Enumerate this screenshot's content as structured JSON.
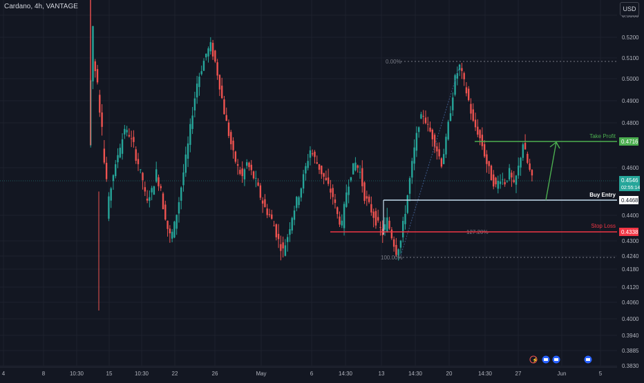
{
  "header": {
    "title": "Cardano, 4h, VANTAGE",
    "currency": "USD"
  },
  "colors": {
    "background": "#131722",
    "grid": "#1e222d",
    "up": "#26a69a",
    "down": "#ef5350",
    "take_profit": "#4caf50",
    "buy_entry": "#c8e0f2",
    "stop_loss": "#f23645",
    "fib": "#787b86"
  },
  "chart_data": {
    "type": "candlestick",
    "title": "Cardano, 4h, VANTAGE",
    "y_unit": "USD",
    "y_range": [
      0.38,
      0.536
    ],
    "y_ticks": [
      "0.5360",
      "0.5200",
      "0.5100",
      "0.5000",
      "0.4900",
      "0.4800",
      "0.4600",
      "0.4400",
      "0.4300",
      "0.4240",
      "0.4180",
      "0.4120",
      "0.4060",
      "0.4000",
      "0.3940",
      "0.3885",
      "0.3830"
    ],
    "x_ticks": [
      "4",
      "8",
      "10:30",
      "15",
      "10:30",
      "22",
      "26",
      "May",
      "6",
      "14:30",
      "13",
      "14:30",
      "20",
      "14:30",
      "27",
      "Jun",
      "5"
    ],
    "annotations": {
      "take_profit": {
        "label": "Take Profit",
        "price": "0.4716"
      },
      "buy_entry": {
        "label": "Buy Entry",
        "price": "0.4468"
      },
      "stop_loss": {
        "label": "Stop Loss",
        "price": "0.4338"
      },
      "current_price": {
        "price": "0.4546",
        "countdown": "02:55:14"
      },
      "fib_levels": [
        "0.00%",
        "127.20%",
        "100.00%"
      ]
    },
    "series_shape": [
      [
        0.47,
        0.528
      ],
      [
        0.508,
        0.5
      ],
      [
        0.492,
        0.48
      ],
      [
        0.47,
        0.455
      ],
      [
        0.44,
        0.452
      ],
      [
        0.455,
        0.46
      ],
      [
        0.462,
        0.47
      ],
      [
        0.468,
        0.478
      ],
      [
        0.476,
        0.475
      ],
      [
        0.474,
        0.47
      ],
      [
        0.468,
        0.462
      ],
      [
        0.46,
        0.455
      ],
      [
        0.452,
        0.445
      ],
      [
        0.448,
        0.45
      ],
      [
        0.45,
        0.458
      ],
      [
        0.456,
        0.452
      ],
      [
        0.448,
        0.44
      ],
      [
        0.438,
        0.432
      ],
      [
        0.43,
        0.436
      ],
      [
        0.436,
        0.446
      ],
      [
        0.446,
        0.458
      ],
      [
        0.458,
        0.47
      ],
      [
        0.47,
        0.485
      ],
      [
        0.485,
        0.498
      ],
      [
        0.498,
        0.505
      ],
      [
        0.505,
        0.512
      ],
      [
        0.512,
        0.516
      ],
      [
        0.516,
        0.508
      ],
      [
        0.508,
        0.497
      ],
      [
        0.497,
        0.485
      ],
      [
        0.485,
        0.475
      ],
      [
        0.475,
        0.466
      ],
      [
        0.466,
        0.46
      ],
      [
        0.46,
        0.456
      ],
      [
        0.456,
        0.462
      ],
      [
        0.462,
        0.458
      ],
      [
        0.458,
        0.454
      ],
      [
        0.454,
        0.448
      ],
      [
        0.448,
        0.443
      ],
      [
        0.443,
        0.44
      ],
      [
        0.44,
        0.436
      ],
      [
        0.436,
        0.43
      ],
      [
        0.43,
        0.426
      ],
      [
        0.426,
        0.432
      ],
      [
        0.432,
        0.44
      ],
      [
        0.44,
        0.446
      ],
      [
        0.446,
        0.452
      ],
      [
        0.452,
        0.46
      ],
      [
        0.46,
        0.468
      ],
      [
        0.468,
        0.464
      ],
      [
        0.464,
        0.46
      ],
      [
        0.46,
        0.456
      ],
      [
        0.456,
        0.452
      ],
      [
        0.452,
        0.448
      ],
      [
        0.448,
        0.44
      ],
      [
        0.44,
        0.436
      ],
      [
        0.436,
        0.45
      ],
      [
        0.45,
        0.458
      ],
      [
        0.458,
        0.462
      ],
      [
        0.462,
        0.458
      ],
      [
        0.458,
        0.448
      ],
      [
        0.448,
        0.444
      ],
      [
        0.444,
        0.44
      ],
      [
        0.44,
        0.436
      ],
      [
        0.436,
        0.433
      ],
      [
        0.433,
        0.438
      ],
      [
        0.438,
        0.432
      ],
      [
        0.432,
        0.426
      ],
      [
        0.426,
        0.43
      ],
      [
        0.43,
        0.442
      ],
      [
        0.442,
        0.455
      ],
      [
        0.455,
        0.468
      ],
      [
        0.468,
        0.48
      ],
      [
        0.48,
        0.484
      ],
      [
        0.484,
        0.478
      ],
      [
        0.478,
        0.474
      ],
      [
        0.474,
        0.468
      ],
      [
        0.468,
        0.462
      ],
      [
        0.462,
        0.472
      ],
      [
        0.472,
        0.486
      ],
      [
        0.486,
        0.5
      ],
      [
        0.5,
        0.506
      ],
      [
        0.506,
        0.498
      ],
      [
        0.498,
        0.49
      ],
      [
        0.49,
        0.48
      ],
      [
        0.48,
        0.476
      ],
      [
        0.476,
        0.47
      ],
      [
        0.47,
        0.462
      ],
      [
        0.462,
        0.456
      ],
      [
        0.456,
        0.452
      ],
      [
        0.452,
        0.456
      ],
      [
        0.456,
        0.454
      ],
      [
        0.454,
        0.458
      ],
      [
        0.458,
        0.452
      ],
      [
        0.452,
        0.46
      ],
      [
        0.46,
        0.471
      ],
      [
        0.471,
        0.462
      ],
      [
        0.462,
        0.455
      ]
    ]
  }
}
